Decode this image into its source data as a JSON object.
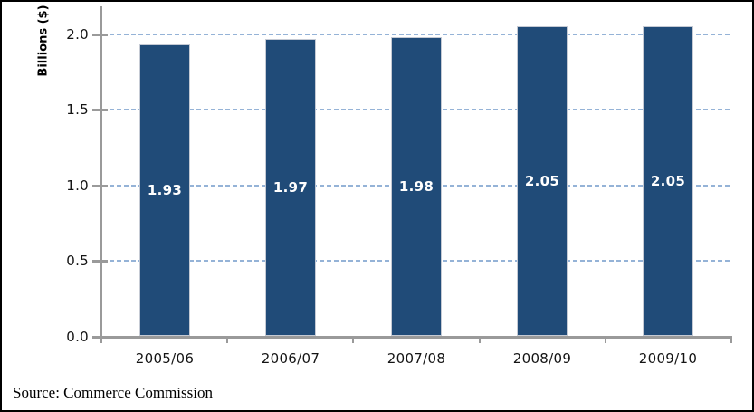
{
  "figure": {
    "background": "#ffffff",
    "border_color": "#000000"
  },
  "chart_data": {
    "type": "bar",
    "title": "",
    "xlabel": "",
    "ylabel": "Billions ($)",
    "categories": [
      "2005/06",
      "2006/07",
      "2007/08",
      "2008/09",
      "2009/10"
    ],
    "values": [
      1.93,
      1.97,
      1.98,
      2.05,
      2.05
    ],
    "bar_labels": [
      "1.93",
      "1.97",
      "1.98",
      "2.05",
      "2.05"
    ],
    "ylim": [
      0,
      2.0
    ],
    "yticks": [
      0.0,
      0.5,
      1.0,
      1.5,
      2.0
    ],
    "ytick_labels": [
      "0.0",
      "0.5",
      "1.0",
      "1.5",
      "2.0"
    ],
    "grid": "horizontal dashed",
    "legend": "none",
    "colors": {
      "bar": "#204b78",
      "bar_border": "#c5cad4",
      "bar_label": "#ffffff",
      "gridline": "#95b3d7",
      "axis": "#9a9a9a",
      "tick_label": "#141414"
    }
  },
  "footer": {
    "source_text": "Source: Commerce Commission"
  }
}
